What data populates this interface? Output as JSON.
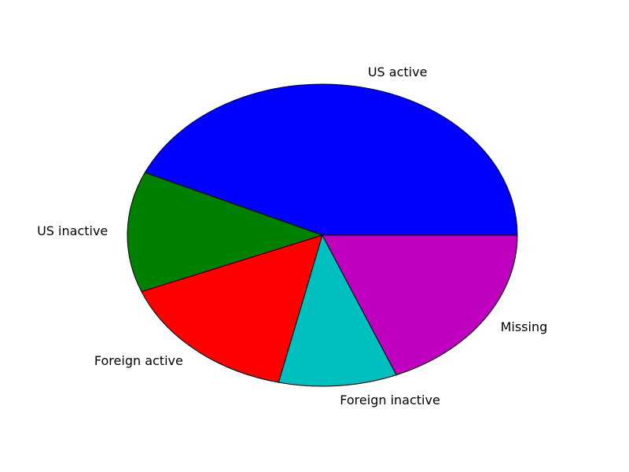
{
  "chart_data": {
    "type": "pie",
    "title": "",
    "direction": "counterclockwise",
    "start_angle_deg": 0,
    "slices": [
      {
        "label": "US active",
        "value": 43.2,
        "color": "#0000ff"
      },
      {
        "label": "US inactive",
        "value": 12.9,
        "color": "#008000"
      },
      {
        "label": "Foreign active",
        "value": 15.3,
        "color": "#ff0000"
      },
      {
        "label": "Foreign inactive",
        "value": 9.8,
        "color": "#00bfbf"
      },
      {
        "label": "Missing",
        "value": 18.8,
        "color": "#bf00bf"
      }
    ]
  }
}
